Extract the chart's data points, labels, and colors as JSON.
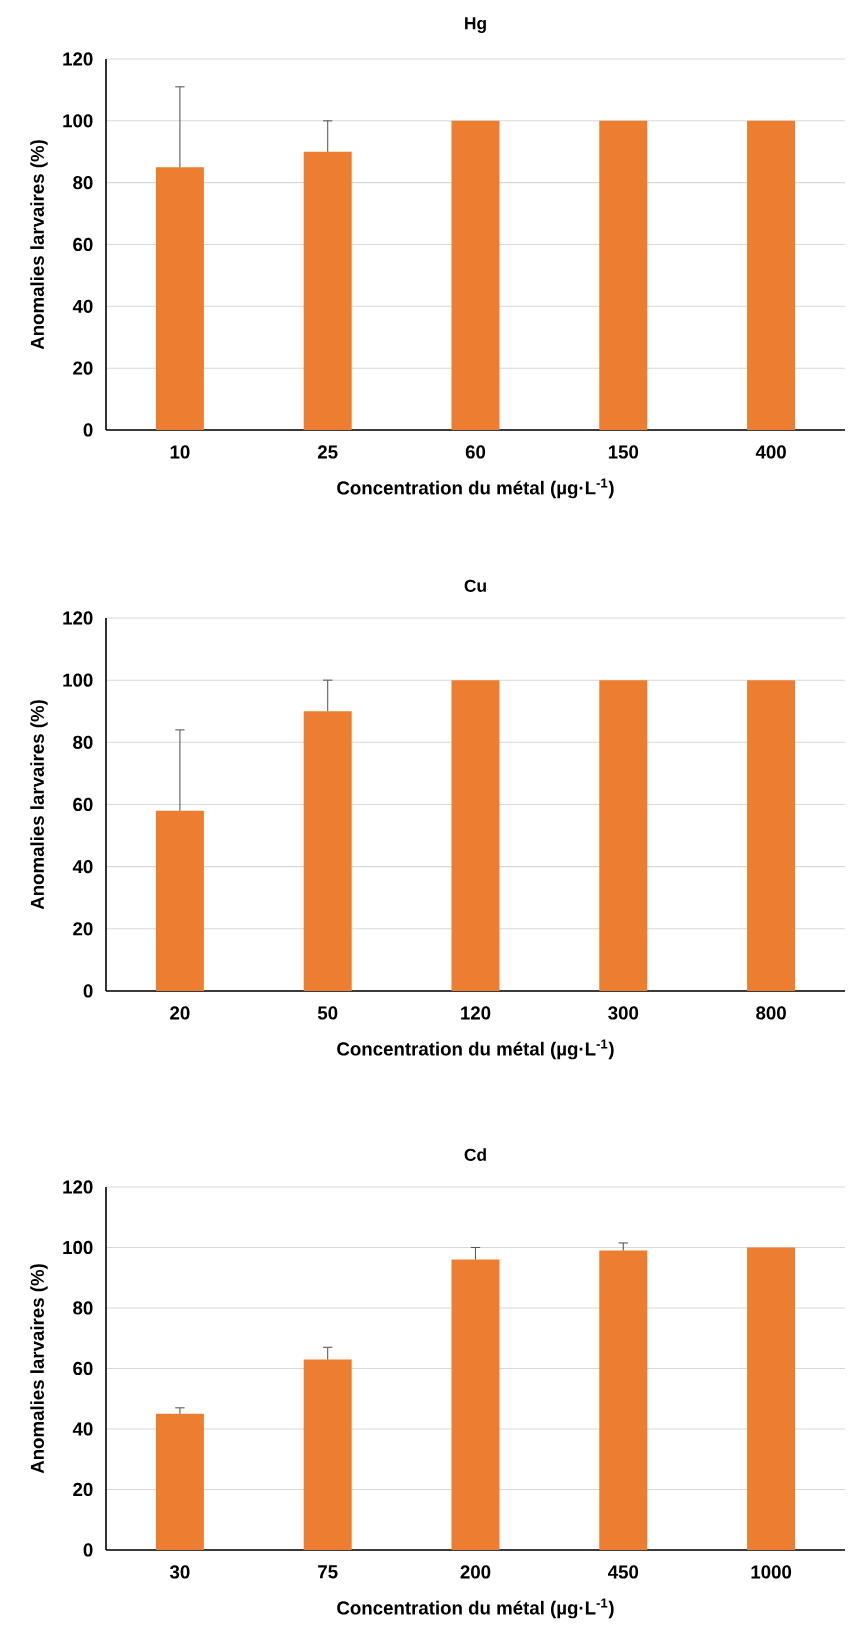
{
  "chart_data": [
    {
      "type": "bar",
      "title": "Hg",
      "xlabel": "Concentration du métal (µg·L$^{-1}$)",
      "ylabel": "Anomalies larvaires (%)",
      "categories": [
        "10",
        "25",
        "60",
        "150",
        "400"
      ],
      "values": [
        85,
        90,
        100,
        100,
        100
      ],
      "errors": [
        [
          85,
          111
        ],
        [
          90,
          100
        ],
        null,
        null,
        null
      ],
      "color": "#ed7d31",
      "ylim": [
        0,
        120
      ],
      "yticks": [
        0,
        20,
        40,
        60,
        80,
        100,
        120
      ],
      "grid": "y"
    },
    {
      "type": "bar",
      "title": "Cu",
      "xlabel": "Concentration du métal (µg·L$^{-1}$)",
      "ylabel": "Anomalies larvaires (%)",
      "categories": [
        "20",
        "50",
        "120",
        "300",
        "800"
      ],
      "values": [
        58,
        90,
        100,
        100,
        100
      ],
      "errors": [
        [
          58,
          84
        ],
        [
          90,
          100
        ],
        null,
        null,
        null
      ],
      "color": "#ed7d31",
      "ylim": [
        0,
        120
      ],
      "yticks": [
        0,
        20,
        40,
        60,
        80,
        100,
        120
      ],
      "grid": "y"
    },
    {
      "type": "bar",
      "title": "Cd",
      "xlabel": "Concentration du métal (µg·L$^{-1}$)",
      "ylabel": "Anomalies larvaires (%)",
      "categories": [
        "30",
        "75",
        "200",
        "450",
        "1000"
      ],
      "values": [
        45,
        63,
        96,
        99,
        100
      ],
      "errors": [
        [
          45,
          47
        ],
        [
          63,
          67
        ],
        [
          96,
          100
        ],
        [
          99,
          101.5
        ],
        null
      ],
      "color": "#ed7d31",
      "ylim": [
        0,
        120
      ],
      "yticks": [
        0,
        20,
        40,
        60,
        80,
        100,
        120
      ],
      "grid": "y"
    }
  ]
}
